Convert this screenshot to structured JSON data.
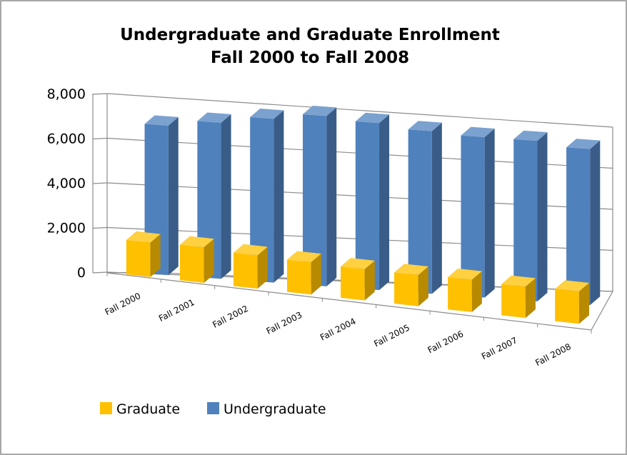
{
  "chart_data": {
    "type": "bar",
    "title": [
      "Undergraduate and Graduate Enrollment",
      "Fall 2000 to Fall 2008"
    ],
    "xlabel": "",
    "ylabel": "",
    "categories": [
      "Fall 2000",
      "Fall 2001",
      "Fall 2002",
      "Fall 2003",
      "Fall 2004",
      "Fall 2005",
      "Fall 2006",
      "Fall 2007",
      "Fall 2008"
    ],
    "ylim": [
      0,
      8000
    ],
    "yticks": [
      "0",
      "2,000",
      "4,000",
      "6,000",
      "8,000"
    ],
    "series": [
      {
        "name": "Graduate",
        "color": "#FFC000",
        "values": [
          1600,
          1650,
          1550,
          1500,
          1450,
          1450,
          1500,
          1450,
          1500
        ]
      },
      {
        "name": "Undergraduate",
        "color": "#4F81BD",
        "values": [
          6800,
          7100,
          7450,
          7750,
          7600,
          7400,
          7300,
          7300,
          7100
        ]
      }
    ],
    "grid": true,
    "legend_position": "bottom-left",
    "style": "3d-column"
  }
}
